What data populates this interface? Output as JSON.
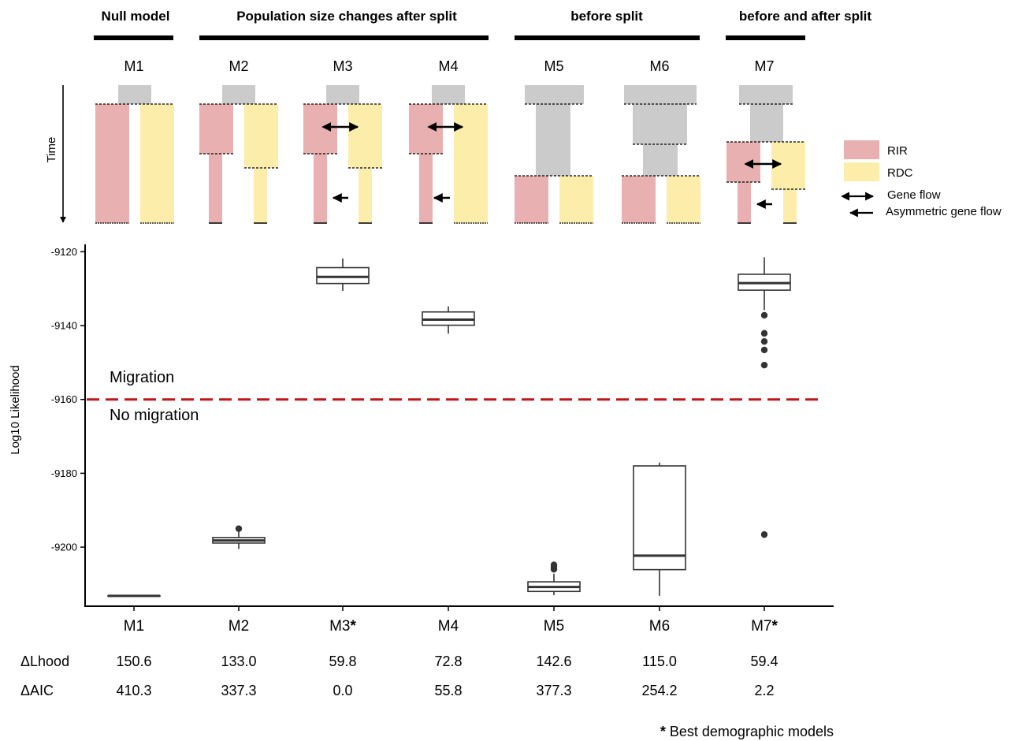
{
  "legend": {
    "items": [
      {
        "label": "RIR",
        "color": "#e8b0b0"
      },
      {
        "label": "RDC",
        "color": "#fdedaa"
      }
    ],
    "gene_flow": "Gene flow",
    "asym_gene_flow": "Asymmetric gene flow"
  },
  "groups": [
    {
      "label": "Null model"
    },
    {
      "label": "Population size changes after split"
    },
    {
      "label": "before split"
    },
    {
      "label": "before and after split"
    }
  ],
  "models": [
    {
      "label": "M1",
      "diagram": "null",
      "xlabel": "M1",
      "dlhood": "150.6",
      "daic": "410.3"
    },
    {
      "label": "M2",
      "diagram": "after",
      "xlabel": "M2",
      "dlhood": "133.0",
      "daic": "337.3"
    },
    {
      "label": "M3",
      "diagram": "after_flow_asym",
      "xlabel": "M3*",
      "dlhood": "59.8",
      "daic": "0.0"
    },
    {
      "label": "M4",
      "diagram": "after_flow_asym_rdc",
      "xlabel": "M4",
      "dlhood": "72.8",
      "daic": "55.8"
    },
    {
      "label": "M5",
      "diagram": "before",
      "xlabel": "M5",
      "dlhood": "142.6",
      "daic": "377.3"
    },
    {
      "label": "M6",
      "diagram": "before2",
      "xlabel": "M6",
      "dlhood": "115.0",
      "daic": "254.2"
    },
    {
      "label": "M7",
      "diagram": "both",
      "xlabel": "M7*",
      "dlhood": "59.4",
      "daic": "2.2"
    }
  ],
  "time_label": "Time",
  "row_labels": {
    "dlhood": "ΔLhood",
    "daic": "ΔAIC"
  },
  "regions": {
    "migration": "Migration",
    "no_migration": "No migration"
  },
  "footnote": {
    "star": "*",
    "text": " Best demographic models"
  },
  "colors": {
    "rir": "#e8b0b0",
    "rdc": "#fdedaa",
    "ancestral": "#cbcbcb",
    "threshold": "#c0161a",
    "box": "#333333"
  },
  "chart_data": {
    "type": "box",
    "categories": [
      "M1",
      "M2",
      "M3*",
      "M4",
      "M5",
      "M6",
      "M7*"
    ],
    "xlabel": "",
    "ylabel": "Log10 Likelihood",
    "ylim": [
      -9216,
      -9118
    ],
    "yticks": [
      -9120,
      -9140,
      -9160,
      -9180,
      -9200
    ],
    "threshold": -9160,
    "grid": false,
    "legend_position": "right",
    "boxes": [
      {
        "category": "M1",
        "whisker_low": -9213.2,
        "q1": -9213.2,
        "median": -9213.2,
        "q3": -9213.2,
        "whisker_high": -9213.2,
        "outliers": []
      },
      {
        "category": "M2",
        "whisker_low": -9200.5,
        "q1": -9198.9,
        "median": -9198.2,
        "q3": -9197.4,
        "whisker_high": -9195.8,
        "outliers": [
          -9195.0
        ]
      },
      {
        "category": "M3*",
        "whisker_low": -9130.6,
        "q1": -9128.6,
        "median": -9126.8,
        "q3": -9124.3,
        "whisker_high": -9121.8,
        "outliers": []
      },
      {
        "category": "M4",
        "whisker_low": -9142.2,
        "q1": -9139.9,
        "median": -9138.4,
        "q3": -9136.3,
        "whisker_high": -9134.8,
        "outliers": []
      },
      {
        "category": "M5",
        "whisker_low": -9213.0,
        "q1": -9212.0,
        "median": -9210.8,
        "q3": -9209.4,
        "whisker_high": -9207.2,
        "outliers": [
          -9204.8,
          -9205.3,
          -9206.0
        ]
      },
      {
        "category": "M6",
        "whisker_low": -9213.2,
        "q1": -9206.1,
        "median": -9202.3,
        "q3": -9178.0,
        "whisker_high": -9177.1,
        "outliers": []
      },
      {
        "category": "M7*",
        "whisker_low": -9135.8,
        "q1": -9130.4,
        "median": -9128.5,
        "q3": -9126.1,
        "whisker_high": -9121.5,
        "outliers": [
          -9137.2,
          -9142.1,
          -9144.3,
          -9146.6,
          -9150.7,
          -9196.6
        ]
      }
    ]
  }
}
